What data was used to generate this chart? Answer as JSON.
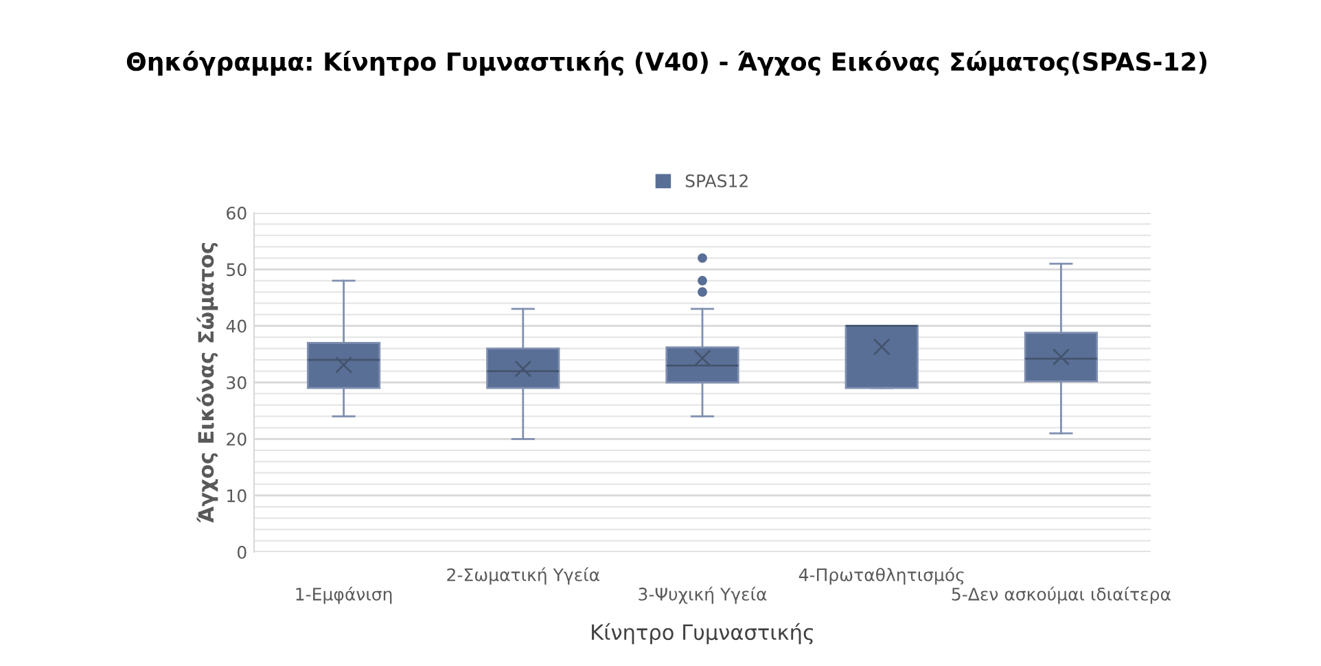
{
  "chart_data": {
    "type": "box",
    "title": "Θηκόγραμμα: Κίνητρο Γυμναστικής (V40) - Άγχος Εικόνας Σώματος(SPAS-12)",
    "xlabel": "Κίνητρο Γυμναστικής",
    "ylabel": "Άγχος Εικόνας Σώματος",
    "categories": [
      "1-Εμφάνιση",
      "2-Σωματική Υγεία",
      "3-Ψυχική Υγεία",
      "4-Πρωταθλητισμός",
      "5-Δεν ασκούμαι ιδιαίτερα"
    ],
    "series": [
      {
        "name": "SPAS12",
        "color": "#5a6f96",
        "boxes": [
          {
            "low": 24,
            "q1": 29,
            "median": 34,
            "q3": 37,
            "high": 48,
            "mean": 33.1
          },
          {
            "low": 20,
            "q1": 29,
            "median": 32,
            "q3": 36,
            "high": 43,
            "mean": 32.4
          },
          {
            "low": 24,
            "q1": 30,
            "median": 33,
            "q3": 36.2,
            "high": 43,
            "mean": 34.3,
            "outliers": [
              46,
              48,
              52
            ]
          },
          {
            "low": 29,
            "q1": 29,
            "median": 40,
            "q3": 40,
            "high": 40,
            "mean": 36.3
          },
          {
            "low": 21,
            "q1": 30.2,
            "median": 34.2,
            "q3": 38.8,
            "high": 51,
            "mean": 34.5
          }
        ]
      }
    ],
    "ylim": [
      0,
      60
    ],
    "yticks": [
      0,
      10,
      20,
      30,
      40,
      50,
      60
    ],
    "grid": "y",
    "legend": "top"
  }
}
